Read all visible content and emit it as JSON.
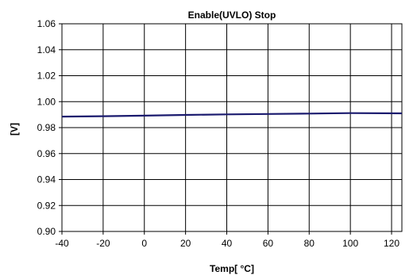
{
  "chart_data": {
    "type": "line",
    "title": "Enable(UVLO) Stop",
    "xlabel": "Temp[ °C]",
    "ylabel": "[V]",
    "xlim": [
      -40,
      125
    ],
    "ylim": [
      0.9,
      1.06
    ],
    "x_ticks": [
      "-40",
      "-20",
      "0",
      "20",
      "40",
      "60",
      "80",
      "100",
      "120"
    ],
    "y_ticks": [
      "0.90",
      "0.92",
      "0.94",
      "0.96",
      "0.98",
      "1.00",
      "1.02",
      "1.04",
      "1.06"
    ],
    "grid": true,
    "legend": "none",
    "series": [
      {
        "color": "#1a1a6e",
        "x": [
          -40,
          -20,
          0,
          20,
          40,
          60,
          80,
          100,
          125
        ],
        "y": [
          0.9885,
          0.9888,
          0.9892,
          0.9898,
          0.9902,
          0.9905,
          0.9908,
          0.9912,
          0.991
        ]
      }
    ]
  }
}
